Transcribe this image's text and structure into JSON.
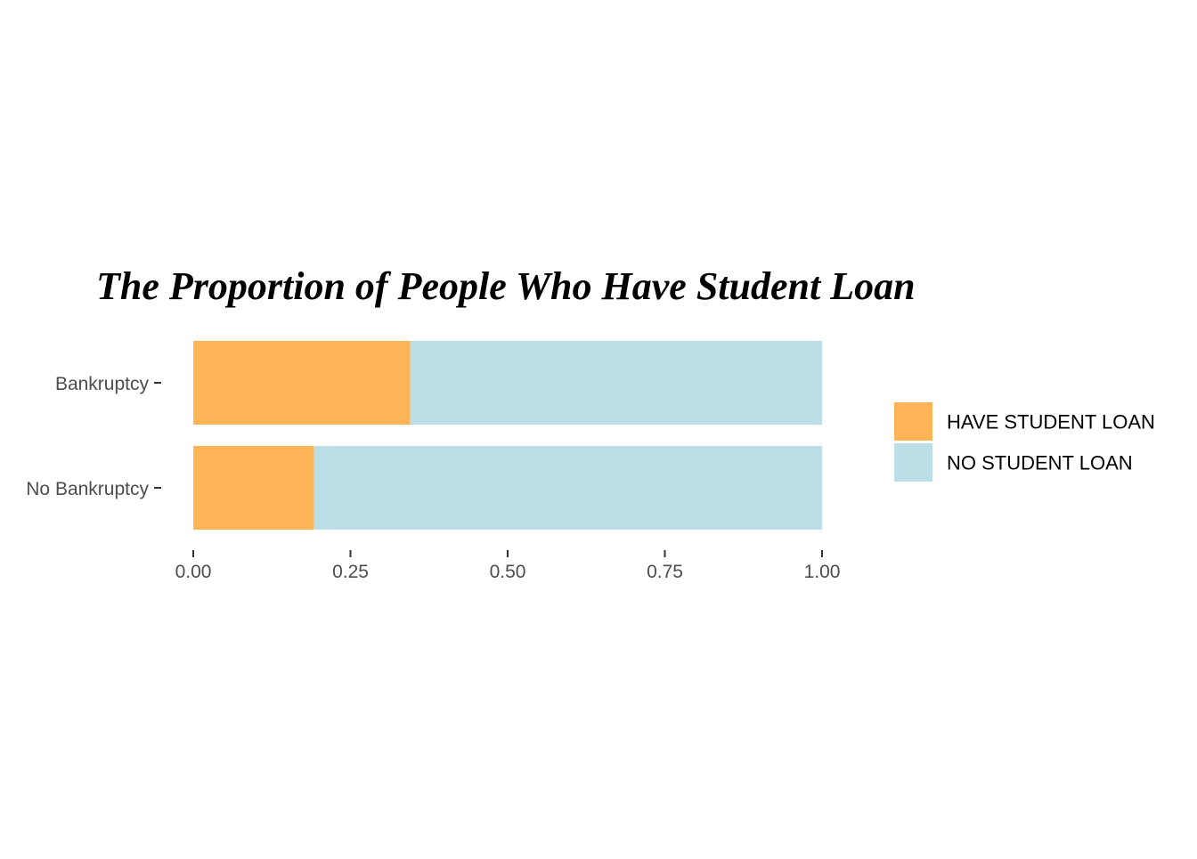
{
  "chart_data": {
    "type": "bar",
    "orientation": "horizontal",
    "stacked": true,
    "title": "The Proportion of People Who Have Student Loan",
    "xlabel": "",
    "ylabel": "",
    "categories": [
      "Bankruptcy",
      "No Bankruptcy"
    ],
    "series": [
      {
        "name": "HAVE STUDENT LOAN",
        "color": "#fdb456",
        "values": [
          0.345,
          0.192
        ]
      },
      {
        "name": "NO STUDENT LOAN",
        "color": "#bcdee7",
        "values": [
          0.655,
          0.808
        ]
      }
    ],
    "xlim": [
      0,
      1
    ],
    "x_ticks": [
      0,
      0.25,
      0.5,
      0.75,
      1
    ],
    "x_tick_labels": [
      "0.00",
      "0.25",
      "0.50",
      "0.75",
      "1.00"
    ],
    "grid": false,
    "legend_position": "right"
  }
}
